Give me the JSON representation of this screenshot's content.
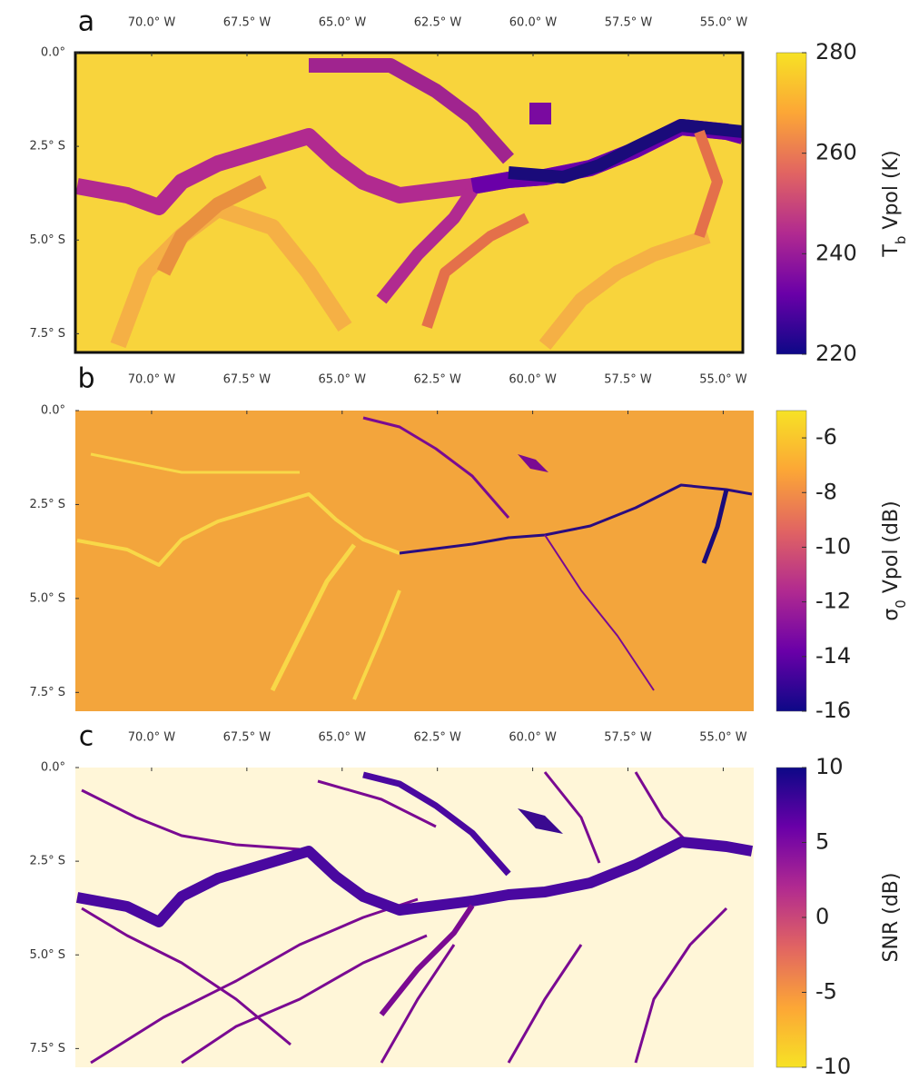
{
  "chart_data": [
    {
      "type": "heatmap",
      "panel": "a",
      "xlim": [
        -72,
        -54.5
      ],
      "ylim": [
        -8,
        0
      ],
      "xticks": [
        {
          "value": -70,
          "label": "70.0° W"
        },
        {
          "value": -67.5,
          "label": "67.5° W"
        },
        {
          "value": -65,
          "label": "65.0° W"
        },
        {
          "value": -62.5,
          "label": "62.5° W"
        },
        {
          "value": -60,
          "label": "60.0° W"
        },
        {
          "value": -57.5,
          "label": "57.5° W"
        },
        {
          "value": -55,
          "label": "55.0° W"
        }
      ],
      "yticks": [
        {
          "value": 0,
          "label": "0.0°"
        },
        {
          "value": -2.5,
          "label": "2.5° S"
        },
        {
          "value": -5,
          "label": "5.0° S"
        },
        {
          "value": -7.5,
          "label": "7.5° S"
        }
      ],
      "colorbar_symbol": "T",
      "colorbar_subscript": "b",
      "colorbar_label": " Vpol (K)",
      "colorbar_lim": [
        220,
        280
      ],
      "colorbar_ticks": [
        220,
        240,
        260,
        280
      ],
      "colormap": [
        "#0d0887",
        "#6a00a8",
        "#b12a90",
        "#e16462",
        "#fca636",
        "#f7e225"
      ]
    },
    {
      "type": "heatmap",
      "panel": "b",
      "xlim": [
        -72,
        -54.2
      ],
      "ylim": [
        -8,
        0
      ],
      "xticks": [
        {
          "value": -70,
          "label": "70.0° W"
        },
        {
          "value": -67.5,
          "label": "67.5° W"
        },
        {
          "value": -65,
          "label": "65.0° W"
        },
        {
          "value": -62.5,
          "label": "62.5° W"
        },
        {
          "value": -60,
          "label": "60.0° W"
        },
        {
          "value": -57.5,
          "label": "57.5° W"
        },
        {
          "value": -55,
          "label": "55.0° W"
        }
      ],
      "yticks": [
        {
          "value": 0,
          "label": "0.0°"
        },
        {
          "value": -2.5,
          "label": "2.5° S"
        },
        {
          "value": -5,
          "label": "5.0° S"
        },
        {
          "value": -7.5,
          "label": "7.5° S"
        }
      ],
      "colorbar_symbol": "σ",
      "colorbar_subscript": "0",
      "colorbar_label": " Vpol (dB)",
      "colorbar_lim": [
        -16,
        -5
      ],
      "colorbar_ticks": [
        -16,
        -14,
        -12,
        -10,
        -8,
        -6
      ],
      "colormap": [
        "#0d0887",
        "#6a00a8",
        "#b12a90",
        "#e16462",
        "#fca636",
        "#f7e225"
      ]
    },
    {
      "type": "heatmap",
      "panel": "c",
      "xlim": [
        -72,
        -54.2
      ],
      "ylim": [
        -8,
        0
      ],
      "xticks": [
        {
          "value": -70,
          "label": "70.0° W"
        },
        {
          "value": -67.5,
          "label": "67.5° W"
        },
        {
          "value": -65,
          "label": "65.0° W"
        },
        {
          "value": -62.5,
          "label": "62.5° W"
        },
        {
          "value": -60,
          "label": "60.0° W"
        },
        {
          "value": -57.5,
          "label": "57.5° W"
        },
        {
          "value": -55,
          "label": "55.0° W"
        }
      ],
      "yticks": [
        {
          "value": 0,
          "label": "0.0°"
        },
        {
          "value": -2.5,
          "label": "2.5° S"
        },
        {
          "value": -5,
          "label": "5.0° S"
        },
        {
          "value": -7.5,
          "label": "7.5° S"
        }
      ],
      "colorbar_label": "SNR (dB)",
      "colorbar_lim": [
        -10,
        10
      ],
      "colorbar_ticks": [
        -10,
        -5,
        0,
        5,
        10
      ],
      "colormap": [
        "#f7e225",
        "#fca636",
        "#e16462",
        "#b12a90",
        "#6a00a8",
        "#0d0887"
      ]
    }
  ]
}
